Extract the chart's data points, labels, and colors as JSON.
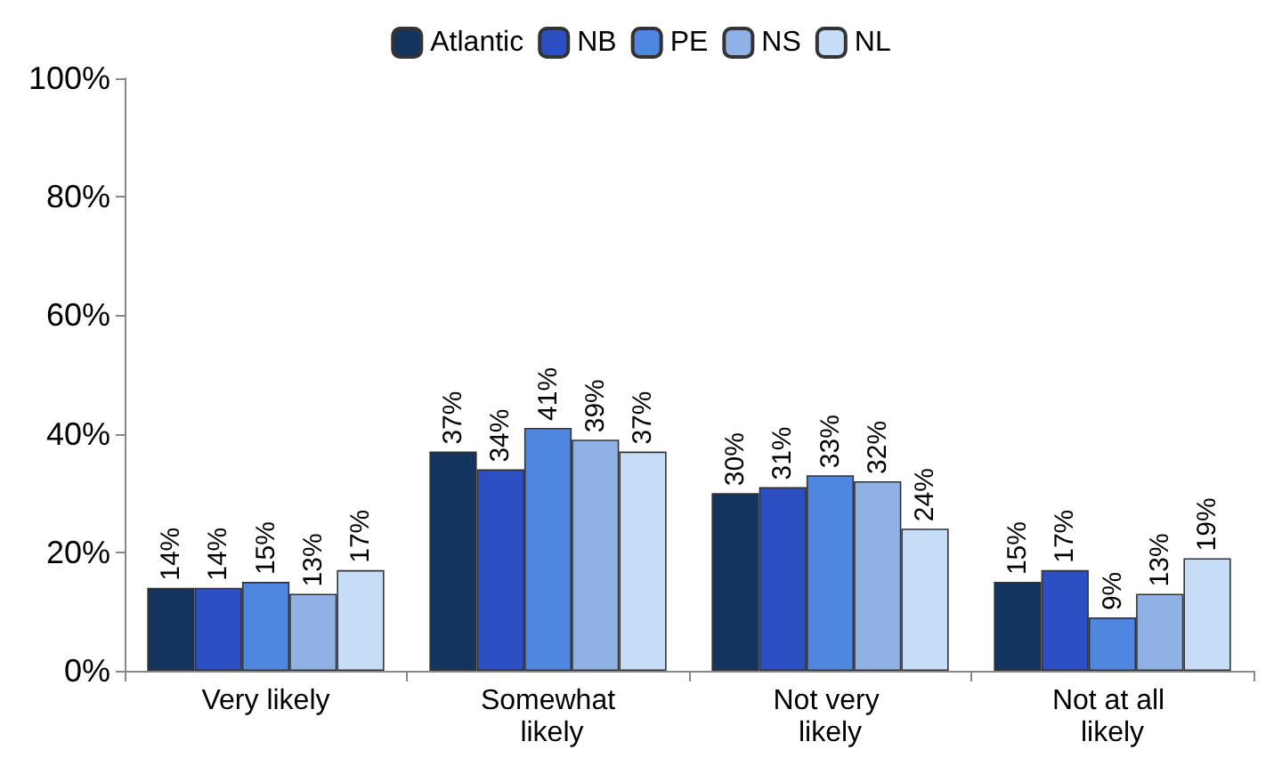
{
  "chart_data": {
    "type": "bar",
    "categories": [
      "Very likely",
      "Somewhat likely",
      "Not very likely",
      "Not at all likely"
    ],
    "series": [
      {
        "name": "Atlantic",
        "color": "#12345e",
        "values": [
          14,
          37,
          30,
          15
        ],
        "value_labels": [
          "14%",
          "37%",
          "30%",
          "15%"
        ]
      },
      {
        "name": "NB",
        "color": "#2d4fc4",
        "values": [
          14,
          34,
          31,
          17
        ],
        "value_labels": [
          "14%",
          "34%",
          "31%",
          "17%"
        ]
      },
      {
        "name": "PE",
        "color": "#4f86e0",
        "values": [
          15,
          41,
          33,
          9
        ],
        "value_labels": [
          "15%",
          "41%",
          "33%",
          "9%"
        ]
      },
      {
        "name": "NS",
        "color": "#8fb1e3",
        "values": [
          13,
          39,
          32,
          13
        ],
        "value_labels": [
          "13%",
          "39%",
          "32%",
          "13%"
        ]
      },
      {
        "name": "NL",
        "color": "#c6ddf8",
        "values": [
          17,
          37,
          24,
          19
        ],
        "value_labels": [
          "17%",
          "37%",
          "24%",
          "19%"
        ]
      }
    ],
    "ylim": [
      0,
      100
    ],
    "yticks": [
      {
        "value": 0,
        "label": "0%"
      },
      {
        "value": 20,
        "label": "20%"
      },
      {
        "value": 40,
        "label": "40%"
      },
      {
        "value": 60,
        "label": "60%"
      },
      {
        "value": 80,
        "label": "80%"
      },
      {
        "value": 100,
        "label": "100%"
      }
    ],
    "grid": false,
    "legend": "top"
  }
}
